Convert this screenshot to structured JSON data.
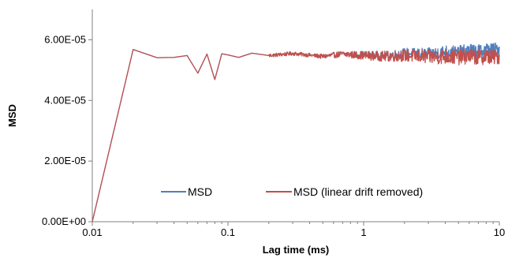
{
  "chart_data": {
    "type": "line",
    "title": "",
    "xlabel": "Lag time (ms)",
    "ylabel": "MSD",
    "x_scale": "log",
    "xlim": [
      0.01,
      10
    ],
    "ylim": [
      0,
      7e-05
    ],
    "x_ticks": [
      {
        "value": 0.01,
        "label": "0.01"
      },
      {
        "value": 0.1,
        "label": "0.1"
      },
      {
        "value": 1,
        "label": "1"
      },
      {
        "value": 10,
        "label": "10"
      }
    ],
    "y_ticks": [
      {
        "value": 0,
        "label": "0.00E+00"
      },
      {
        "value": 2e-05,
        "label": "2.00E-05"
      },
      {
        "value": 4e-05,
        "label": "4.00E-05"
      },
      {
        "value": 6e-05,
        "label": "6.00E-05"
      }
    ],
    "grid": false,
    "legend": {
      "position": "bottom-center",
      "inside_plot": true
    },
    "series": [
      {
        "name": "MSD",
        "color": "#4f81bd",
        "x": [
          0.01,
          0.02,
          0.03,
          0.04,
          0.05,
          0.06,
          0.07,
          0.08,
          0.09,
          0.1,
          0.12,
          0.15,
          0.2,
          0.3,
          0.5,
          0.7,
          1,
          1.5,
          2,
          3,
          4,
          5,
          6,
          7,
          8,
          9,
          10
        ],
        "values": [
          0,
          5.68e-05,
          5.41e-05,
          5.42e-05,
          5.48e-05,
          4.9e-05,
          5.53e-05,
          4.69e-05,
          5.54e-05,
          5.5e-05,
          5.42e-05,
          5.56e-05,
          5.48e-05,
          5.55e-05,
          5.45e-05,
          5.53e-05,
          5.51e-05,
          5.48e-05,
          5.56e-05,
          5.53e-05,
          5.61e-05,
          5.58e-05,
          5.66e-05,
          5.62e-05,
          5.69e-05,
          5.67e-05,
          5.72e-05
        ],
        "noise": 2.2e-06
      },
      {
        "name": "MSD (linear drift removed)",
        "color": "#c0504d",
        "x": [
          0.01,
          0.02,
          0.03,
          0.04,
          0.05,
          0.06,
          0.07,
          0.08,
          0.09,
          0.1,
          0.12,
          0.15,
          0.2,
          0.3,
          0.5,
          0.7,
          1,
          1.5,
          2,
          3,
          4,
          5,
          6,
          7,
          8,
          9,
          10
        ],
        "values": [
          0,
          5.68e-05,
          5.41e-05,
          5.42e-05,
          5.48e-05,
          4.9e-05,
          5.53e-05,
          4.69e-05,
          5.54e-05,
          5.5e-05,
          5.42e-05,
          5.56e-05,
          5.48e-05,
          5.55e-05,
          5.45e-05,
          5.53e-05,
          5.48e-05,
          5.45e-05,
          5.48e-05,
          5.43e-05,
          5.45e-05,
          5.43e-05,
          5.46e-05,
          5.42e-05,
          5.45e-05,
          5.43e-05,
          5.45e-05
        ],
        "noise": 2.6e-06
      }
    ]
  }
}
